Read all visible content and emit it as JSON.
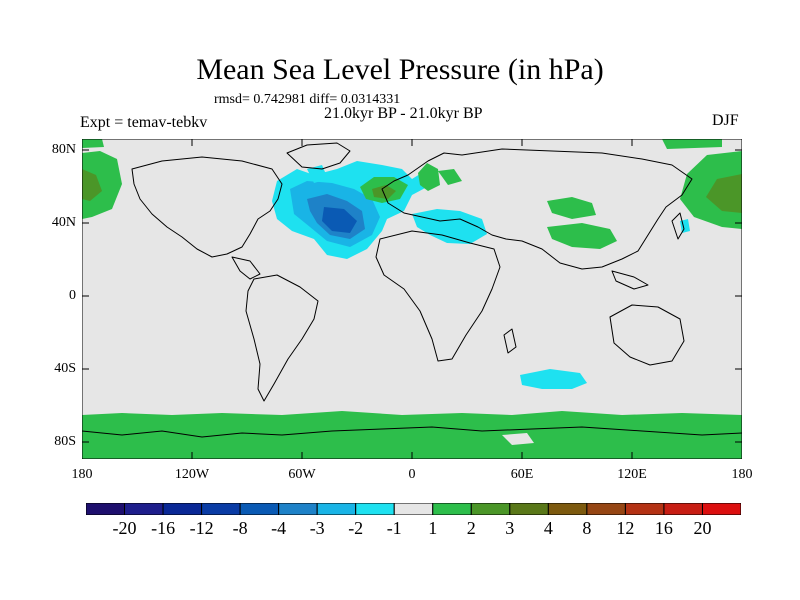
{
  "title": "Mean Sea Level Pressure (in hPa)",
  "stats": "rmsd= 0.742981 diff= 0.0314331",
  "subtitle": "21.0kyr BP - 21.0kyr BP",
  "experiment": "Expt = temav-tebkv",
  "season": "DJF",
  "lat_labels": [
    "80N",
    "40N",
    "0",
    "40S",
    "80S"
  ],
  "lon_labels": [
    "180",
    "120W",
    "60W",
    "0",
    "60E",
    "120E",
    "180"
  ],
  "colorbar": {
    "labels": [
      "-20",
      "-16",
      "-12",
      "-8",
      "-4",
      "-3",
      "-2",
      "-1",
      "1",
      "2",
      "3",
      "4",
      "8",
      "12",
      "16",
      "20"
    ],
    "colors": [
      "#1e0f6e",
      "#1e1e8c",
      "#0a2896",
      "#0a3ca5",
      "#0a5ab4",
      "#1e82c8",
      "#19b4e6",
      "#1ee1f0",
      "#e6e6e6",
      "#2dbe4b",
      "#4b9628",
      "#5a7819",
      "#7d5a0f",
      "#964614",
      "#b43214",
      "#c81e14",
      "#dc0f0f"
    ]
  },
  "colors": {
    "land_background": "#e6e6e6",
    "coast": "#000000"
  }
}
